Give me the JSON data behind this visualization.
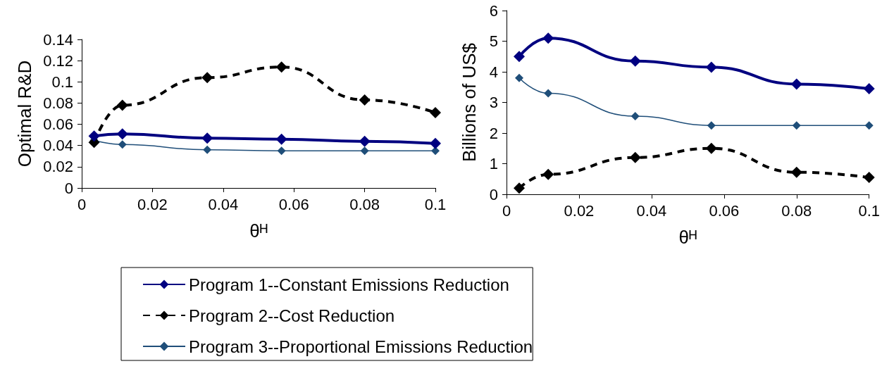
{
  "chart_data": [
    {
      "type": "line",
      "xlabel": "θᴴ",
      "ylabel": "Optimal R&D",
      "x": [
        0.0035,
        0.0115,
        0.0355,
        0.0565,
        0.08,
        0.1
      ],
      "xlim": [
        0,
        0.1
      ],
      "xticks": [
        0,
        0.02,
        0.04,
        0.06,
        0.08,
        0.1
      ],
      "ylim": [
        0,
        0.14
      ],
      "yticks": [
        0,
        0.02,
        0.04,
        0.06,
        0.08,
        0.1,
        0.12,
        0.14
      ],
      "grid": false,
      "legend": "bottom",
      "marker": "diamond",
      "series": [
        {
          "name": "Program 1--Constant Emissions Reduction",
          "color": "#000080",
          "line_style": "solid",
          "values": [
            0.049,
            0.051,
            0.047,
            0.046,
            0.044,
            0.042
          ]
        },
        {
          "name": "Program 2--Cost Reduction",
          "color": "#000000",
          "line_style": "dashed",
          "values": [
            0.043,
            0.078,
            0.104,
            0.114,
            0.083,
            0.071
          ]
        },
        {
          "name": "Program 3--Proportional Emissions Reduction",
          "color": "#1f4e79",
          "line_style": "solid",
          "values": [
            0.045,
            0.041,
            0.036,
            0.035,
            0.035,
            0.035
          ]
        }
      ]
    },
    {
      "type": "line",
      "xlabel": "θᴴ",
      "ylabel": "Billions of US$",
      "x": [
        0.0035,
        0.0115,
        0.0355,
        0.0565,
        0.08,
        0.1
      ],
      "xlim": [
        0,
        0.1
      ],
      "xticks": [
        0,
        0.02,
        0.04,
        0.06,
        0.08,
        0.1
      ],
      "ylim": [
        0,
        6
      ],
      "yticks": [
        0,
        1,
        2,
        3,
        4,
        5,
        6
      ],
      "grid": false,
      "legend": "bottom",
      "marker": "diamond",
      "series": [
        {
          "name": "Program 1--Constant Emissions Reduction",
          "color": "#000080",
          "line_style": "solid",
          "values": [
            4.5,
            5.1,
            4.35,
            4.15,
            3.6,
            3.45
          ]
        },
        {
          "name": "Program 2--Cost Reduction",
          "color": "#000000",
          "line_style": "dashed",
          "values": [
            0.2,
            0.65,
            1.2,
            1.5,
            0.72,
            0.55
          ]
        },
        {
          "name": "Program 3--Proportional Emissions Reduction",
          "color": "#1f4e79",
          "line_style": "solid",
          "values": [
            3.8,
            3.3,
            2.55,
            2.25,
            2.25,
            2.25
          ]
        }
      ]
    }
  ]
}
